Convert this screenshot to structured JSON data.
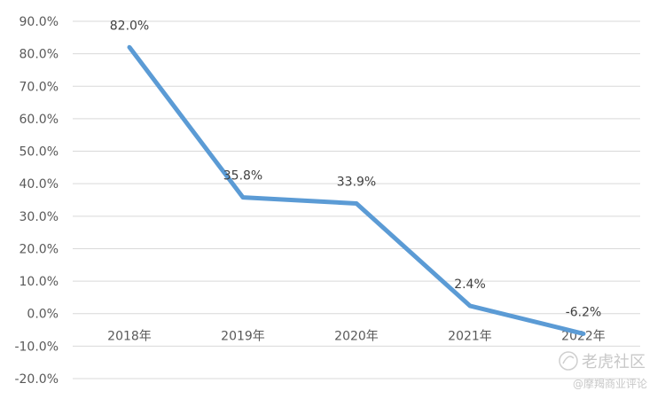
{
  "chart_data": {
    "type": "line",
    "categories": [
      "2018年",
      "2019年",
      "2020年",
      "2021年",
      "2022年"
    ],
    "series": [
      {
        "values": [
          82.0,
          35.8,
          33.9,
          2.4,
          -6.2
        ],
        "data_labels": [
          "82.0%",
          "35.8%",
          "33.9%",
          "2.4%",
          "-6.2%"
        ]
      }
    ],
    "ylim": [
      -20,
      90
    ],
    "y_ticks": [
      90,
      80,
      70,
      60,
      50,
      40,
      30,
      20,
      10,
      0,
      -10,
      -20
    ],
    "y_tick_labels": [
      "90.0%",
      "80.0%",
      "70.0%",
      "60.0%",
      "50.0%",
      "40.0%",
      "30.0%",
      "20.0%",
      "10.0%",
      "0.0%",
      "-10.0%",
      "-20.0%"
    ],
    "grid": true,
    "legend": "none",
    "colors": {
      "series": "#5b9bd5",
      "grid": "#d9d9d9",
      "text": "#595959"
    }
  },
  "watermark": {
    "brand": "老虎社区",
    "handle": "@摩羯商业评论"
  }
}
